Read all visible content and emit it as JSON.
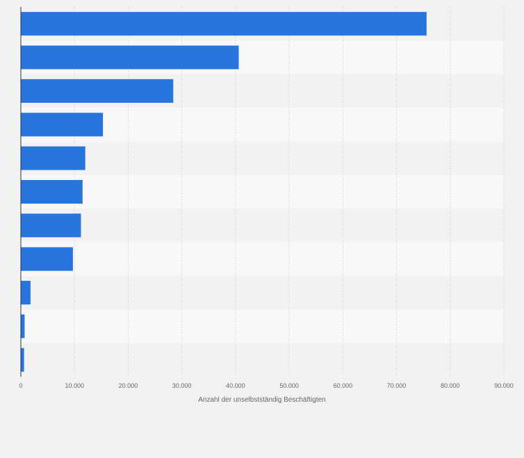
{
  "chart_data": {
    "type": "bar",
    "orientation": "horizontal",
    "xlabel": "Anzahl der unselbstständig Beschäftigten",
    "xlim": [
      0,
      90000
    ],
    "x_ticks": [
      0,
      10000,
      20000,
      30000,
      40000,
      50000,
      60000,
      70000,
      80000,
      90000
    ],
    "x_tick_labels": [
      "0",
      "10.000",
      "20.000",
      "30.000",
      "40.000",
      "50.000",
      "60.000",
      "70.000",
      "80.000",
      "90.000"
    ],
    "values": [
      75600,
      40600,
      28400,
      15300,
      12000,
      11500,
      11200,
      9700,
      1800,
      700,
      600
    ],
    "grid": true,
    "colors": {
      "bar": "#2876dd",
      "band_dark": "#f2f2f2",
      "band_light": "#f8f8f8",
      "grid": "#d9d9d9",
      "axis": "#333333",
      "text": "#666666"
    }
  }
}
